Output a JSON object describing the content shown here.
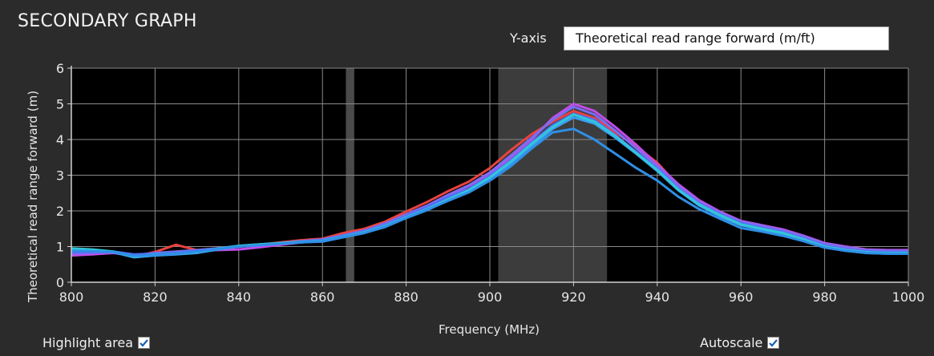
{
  "panel": {
    "title": "SECONDARY GRAPH",
    "yaxis_selector_label": "Y-axis",
    "yaxis_selected": "Theoretical read range forward (m/ft)",
    "highlight_label": "Highlight area",
    "highlight_checked": true,
    "autoscale_label": "Autoscale",
    "autoscale_checked": true
  },
  "chart_data": {
    "type": "line",
    "xlabel": "Frequency (MHz)",
    "ylabel": "Theoretical read range forward (m)",
    "xlim": [
      800,
      1000
    ],
    "ylim": [
      0,
      6
    ],
    "xticks": [
      800,
      820,
      840,
      860,
      880,
      900,
      920,
      940,
      960,
      980,
      1000
    ],
    "yticks": [
      0,
      1,
      2,
      3,
      4,
      5,
      6
    ],
    "grid": true,
    "background": "#000000",
    "highlight_bands": [
      {
        "from": 865.6,
        "to": 867.6,
        "color": "#4a4a4a"
      },
      {
        "from": 902,
        "to": 928,
        "color": "#3c3c3c"
      }
    ],
    "x": [
      800,
      805,
      810,
      815,
      820,
      825,
      830,
      835,
      840,
      845,
      850,
      855,
      860,
      865,
      870,
      875,
      880,
      885,
      890,
      895,
      900,
      905,
      910,
      915,
      920,
      925,
      930,
      935,
      940,
      945,
      950,
      955,
      960,
      965,
      970,
      975,
      980,
      985,
      990,
      995,
      1000
    ],
    "series": [
      {
        "color": "#e8433e",
        "values": [
          0.75,
          0.8,
          0.85,
          0.72,
          0.85,
          1.05,
          0.9,
          0.95,
          1.0,
          1.05,
          1.12,
          1.18,
          1.22,
          1.38,
          1.5,
          1.7,
          1.98,
          2.25,
          2.55,
          2.82,
          3.2,
          3.7,
          4.15,
          4.5,
          4.8,
          4.6,
          4.2,
          3.8,
          3.35,
          2.7,
          2.3,
          1.95,
          1.65,
          1.55,
          1.42,
          1.25,
          1.05,
          0.95,
          0.88,
          0.85,
          0.85
        ]
      },
      {
        "color": "#c04de8",
        "values": [
          0.75,
          0.78,
          0.82,
          0.75,
          0.8,
          0.85,
          0.88,
          0.9,
          0.92,
          0.98,
          1.05,
          1.12,
          1.18,
          1.3,
          1.42,
          1.62,
          1.88,
          2.12,
          2.42,
          2.7,
          3.05,
          3.5,
          4.0,
          4.6,
          5.0,
          4.8,
          4.35,
          3.85,
          3.3,
          2.75,
          2.3,
          1.98,
          1.72,
          1.6,
          1.48,
          1.3,
          1.1,
          1.0,
          0.92,
          0.9,
          0.9
        ]
      },
      {
        "color": "#7b6df0",
        "values": [
          0.8,
          0.82,
          0.84,
          0.76,
          0.82,
          0.86,
          0.9,
          0.95,
          1.0,
          1.05,
          1.1,
          1.15,
          1.2,
          1.32,
          1.45,
          1.65,
          1.9,
          2.15,
          2.45,
          2.72,
          3.08,
          3.55,
          4.05,
          4.55,
          4.92,
          4.7,
          4.25,
          3.75,
          3.25,
          2.7,
          2.25,
          1.95,
          1.7,
          1.58,
          1.45,
          1.28,
          1.08,
          0.98,
          0.9,
          0.88,
          0.88
        ]
      },
      {
        "color": "#4f6ef5",
        "values": [
          0.85,
          0.86,
          0.86,
          0.78,
          0.8,
          0.82,
          0.88,
          0.95,
          1.02,
          1.06,
          1.1,
          1.14,
          1.18,
          1.3,
          1.42,
          1.6,
          1.85,
          2.1,
          2.38,
          2.62,
          2.98,
          3.42,
          3.92,
          4.4,
          4.72,
          4.55,
          4.12,
          3.65,
          3.18,
          2.62,
          2.2,
          1.9,
          1.65,
          1.52,
          1.4,
          1.22,
          1.02,
          0.92,
          0.86,
          0.84,
          0.84
        ]
      },
      {
        "color": "#3aa0f0",
        "values": [
          0.9,
          0.88,
          0.84,
          0.7,
          0.75,
          0.78,
          0.82,
          0.92,
          1.0,
          1.04,
          1.08,
          1.12,
          1.14,
          1.26,
          1.38,
          1.55,
          1.8,
          2.02,
          2.3,
          2.55,
          2.9,
          3.32,
          3.82,
          4.3,
          4.62,
          4.45,
          4.05,
          3.6,
          3.12,
          2.58,
          2.15,
          1.85,
          1.6,
          1.48,
          1.36,
          1.18,
          0.98,
          0.88,
          0.82,
          0.8,
          0.8
        ]
      },
      {
        "color": "#32c7d8",
        "values": [
          0.95,
          0.92,
          0.86,
          0.72,
          0.78,
          0.8,
          0.85,
          0.94,
          1.02,
          1.06,
          1.1,
          1.13,
          1.16,
          1.28,
          1.4,
          1.58,
          1.82,
          2.05,
          2.32,
          2.58,
          2.94,
          3.38,
          3.88,
          4.35,
          4.7,
          4.5,
          4.1,
          3.62,
          3.15,
          2.6,
          2.18,
          1.88,
          1.62,
          1.5,
          1.38,
          1.2,
          1.0,
          0.9,
          0.84,
          0.82,
          0.82
        ]
      },
      {
        "color": "#2f8fe6",
        "values": [
          0.88,
          0.87,
          0.85,
          0.74,
          0.77,
          0.8,
          0.86,
          0.93,
          1.0,
          1.04,
          1.08,
          1.12,
          1.15,
          1.27,
          1.38,
          1.56,
          1.8,
          2.03,
          2.28,
          2.52,
          2.85,
          3.25,
          3.75,
          4.2,
          4.3,
          4.0,
          3.6,
          3.2,
          2.85,
          2.4,
          2.05,
          1.78,
          1.52,
          1.42,
          1.3,
          1.15,
          0.97,
          0.88,
          0.82,
          0.8,
          0.8
        ]
      }
    ]
  }
}
